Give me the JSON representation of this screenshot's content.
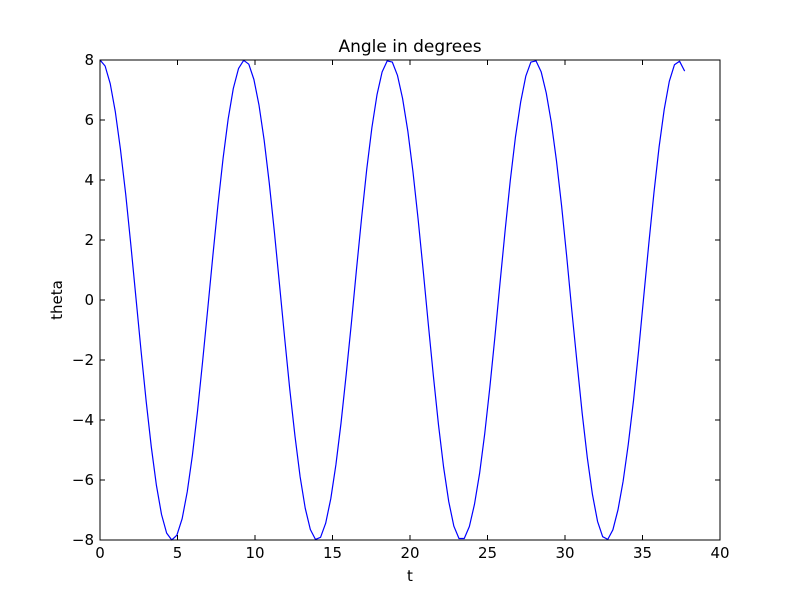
{
  "chart_data": {
    "type": "line",
    "title": "Angle in degrees",
    "xlabel": "t",
    "ylabel": "theta",
    "xlim": [
      0,
      40
    ],
    "ylim": [
      -8,
      8
    ],
    "x_ticks": [
      0,
      5,
      10,
      15,
      20,
      25,
      30,
      35,
      40
    ],
    "x_tick_labels": [
      "0",
      "5",
      "10",
      "15",
      "20",
      "25",
      "30",
      "35",
      "40"
    ],
    "y_ticks": [
      -8,
      -6,
      -4,
      -2,
      0,
      2,
      4,
      6,
      8
    ],
    "y_tick_labels": [
      "−8",
      "−6",
      "−4",
      "−2",
      "0",
      "2",
      "4",
      "6",
      "8"
    ],
    "grid": false,
    "legend": "none",
    "series": [
      {
        "color": "#0000ff",
        "x": [
          0,
          0.33,
          0.66,
          0.99,
          1.32,
          1.66,
          1.99,
          2.32,
          2.65,
          2.98,
          3.31,
          3.64,
          3.97,
          4.3,
          4.63,
          4.96,
          5.3,
          5.63,
          5.96,
          6.29,
          6.62,
          6.95,
          7.28,
          7.61,
          7.94,
          8.27,
          8.6,
          8.94,
          9.27,
          9.6,
          9.93,
          10.26,
          10.59,
          10.92,
          11.25,
          11.58,
          11.91,
          12.24,
          12.58,
          12.91,
          13.24,
          13.57,
          13.9,
          14.23,
          14.56,
          14.89,
          15.22,
          15.55,
          15.88,
          16.22,
          16.55,
          16.88,
          17.21,
          17.54,
          17.87,
          18.2,
          18.53,
          18.86,
          19.19,
          19.52,
          19.86,
          20.19,
          20.52,
          20.85,
          21.18,
          21.51,
          21.84,
          22.17,
          22.5,
          22.83,
          23.16,
          23.5,
          23.83,
          24.16,
          24.49,
          24.82,
          25.15,
          25.48,
          25.81,
          26.14,
          26.47,
          26.8,
          27.14,
          27.47,
          27.8,
          28.13,
          28.46,
          28.79,
          29.12,
          29.45,
          29.78,
          30.11,
          30.44,
          30.78,
          31.11,
          31.44,
          31.77,
          32.1,
          32.43,
          32.76,
          33.09,
          33.42,
          33.75,
          34.08,
          34.42,
          34.75,
          35.08,
          35.41,
          35.74,
          36.07,
          36.4,
          36.73,
          37.06,
          37.39,
          37.72
        ],
        "y": [
          8,
          7.8,
          7.21,
          6.27,
          5.02,
          3.52,
          1.84,
          0.07,
          -1.7,
          -3.38,
          -4.9,
          -6.18,
          -7.15,
          -7.77,
          -8,
          -7.84,
          -7.29,
          -6.39,
          -5.18,
          -3.71,
          -2.05,
          -0.3,
          1.47,
          3.17,
          4.72,
          6.04,
          7.05,
          7.72,
          7.99,
          7.86,
          7.35,
          6.49,
          5.33,
          3.9,
          2.27,
          0.52,
          -1.25,
          -2.96,
          -4.54,
          -5.89,
          -6.94,
          -7.65,
          -7.98,
          -7.91,
          -7.44,
          -6.62,
          -5.49,
          -4.1,
          -2.5,
          -0.76,
          1.03,
          2.75,
          4.36,
          5.74,
          6.84,
          7.6,
          7.97,
          7.93,
          7.49,
          6.72,
          5.63,
          4.28,
          2.71,
          0.99,
          -0.8,
          -2.54,
          -4.17,
          -5.58,
          -6.72,
          -7.54,
          -7.95,
          -7.95,
          -7.55,
          -6.81,
          -5.78,
          -4.46,
          -2.92,
          -1.22,
          0.58,
          2.33,
          3.98,
          5.42,
          6.6,
          7.46,
          7.93,
          7.97,
          7.61,
          6.9,
          5.91,
          4.64,
          3.14,
          1.45,
          -0.35,
          -2.11,
          -3.78,
          -5.26,
          -6.48,
          -7.38,
          -7.89,
          -7.98,
          -7.66,
          -6.99,
          -6.04,
          -4.82,
          -3.35,
          -1.68,
          0.12,
          1.89,
          3.58,
          5.1,
          6.35,
          7.29,
          7.84,
          7.96,
          7.63
        ]
      }
    ]
  }
}
